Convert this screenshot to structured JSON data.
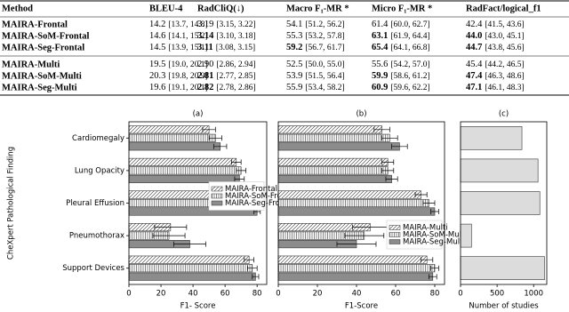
{
  "table": {
    "columns": [
      "Method",
      "BLEU-4",
      "RadCliQ(↓)",
      "Macro F₁-MR *",
      "Micro F₁-MR *",
      "RadFact/logical_f1"
    ],
    "rows": [
      {
        "method": "MAIRA-Frontal",
        "cells": [
          {
            "value": "14.2",
            "ci": "[13.7, 14.8]",
            "bold": false
          },
          {
            "value": "3.19",
            "ci": "[3.15, 3.22]",
            "bold": false
          },
          {
            "value": "54.1",
            "ci": "[51.2, 56.2]",
            "bold": false
          },
          {
            "value": "61.4",
            "ci": "[60.0, 62.7]",
            "bold": false
          },
          {
            "value": "42.4",
            "ci": "[41.5, 43.6]",
            "bold": false
          }
        ]
      },
      {
        "method": "MAIRA-SoM-Frontal",
        "cells": [
          {
            "value": "14.6",
            "ci": "[14.1, 15.2]",
            "bold": false
          },
          {
            "value": "3.14",
            "ci": "[3.10, 3.18]",
            "bold": true
          },
          {
            "value": "55.3",
            "ci": "[53.2, 57.8]",
            "bold": false
          },
          {
            "value": "63.1",
            "ci": "[61.9, 64.4]",
            "bold": true
          },
          {
            "value": "44.0",
            "ci": "[43.0, 45.1]",
            "bold": true
          }
        ]
      },
      {
        "method": "MAIRA-Seg-Frontal",
        "cells": [
          {
            "value": "14.5",
            "ci": "[13.9, 15.1]",
            "bold": false
          },
          {
            "value": "3.11",
            "ci": "[3.08, 3.15]",
            "bold": true
          },
          {
            "value": "59.2",
            "ci": "[56.7, 61.7]",
            "bold": true
          },
          {
            "value": "65.4",
            "ci": "[64.1, 66.8]",
            "bold": true
          },
          {
            "value": "44.7",
            "ci": "[43.8, 45.6]",
            "bold": true
          }
        ]
      },
      {
        "method": "MAIRA-Multi",
        "cells": [
          {
            "value": "19.5",
            "ci": "[19.0, 20.1]",
            "bold": false
          },
          {
            "value": "2.90",
            "ci": "[2.86, 2.94]",
            "bold": false
          },
          {
            "value": "52.5",
            "ci": "[50.0, 55.0]",
            "bold": false
          },
          {
            "value": "55.6",
            "ci": "[54.2, 57.0]",
            "bold": false
          },
          {
            "value": "45.4",
            "ci": "[44.2, 46.5]",
            "bold": false
          }
        ]
      },
      {
        "method": "MAIRA-SoM-Multi",
        "cells": [
          {
            "value": "20.3",
            "ci": "[19.8, 20.9]",
            "bold": false
          },
          {
            "value": "2.81",
            "ci": "[2.77, 2.85]",
            "bold": true
          },
          {
            "value": "53.9",
            "ci": "[51.5, 56.4]",
            "bold": false
          },
          {
            "value": "59.9",
            "ci": "[58.6, 61.2]",
            "bold": true
          },
          {
            "value": "47.4",
            "ci": "[46.3, 48.6]",
            "bold": true
          }
        ]
      },
      {
        "method": "MAIRA-Seg-Multi",
        "cells": [
          {
            "value": "19.6",
            "ci": "[19.1, 20.1]",
            "bold": false
          },
          {
            "value": "2.82",
            "ci": "[2.78, 2.86]",
            "bold": true
          },
          {
            "value": "55.9",
            "ci": "[53.4, 58.2]",
            "bold": false
          },
          {
            "value": "60.9",
            "ci": "[59.6, 62.2]",
            "bold": true
          },
          {
            "value": "47.1",
            "ci": "[46.1, 48.3]",
            "bold": true
          }
        ]
      }
    ]
  },
  "chart_data": [
    {
      "type": "bar",
      "orientation": "horizontal",
      "title": "(a)",
      "xlabel": "F1- Score",
      "ylabel": "CheXpert Pathological Finding",
      "categories": [
        "Cardiomegaly",
        "Lung Opacity",
        "Pleural Effusion",
        "Pneumothorax",
        "Support Devices"
      ],
      "series": [
        {
          "name": "MAIRA-Frontal",
          "color": "#ffffff",
          "hatch": "diagonal",
          "values": [
            50,
            67,
            78,
            26,
            75
          ],
          "errors": [
            4,
            3,
            3,
            10,
            3
          ]
        },
        {
          "name": "MAIRA-SoM-Frontal",
          "color": "#ffffff",
          "hatch": "vertical",
          "values": [
            54,
            70,
            80,
            25,
            77
          ],
          "errors": [
            4,
            3,
            3,
            10,
            3
          ]
        },
        {
          "name": "MAIRA-Seg-Frontal",
          "color": "#8c8c8c",
          "hatch": "none",
          "values": [
            57,
            69,
            80,
            38,
            79
          ],
          "errors": [
            4,
            3,
            2,
            10,
            2
          ]
        }
      ],
      "xlim": [
        0,
        86
      ],
      "xticks": [
        0,
        20,
        40,
        60,
        80
      ],
      "legend": "center right"
    },
    {
      "type": "bar",
      "orientation": "horizontal",
      "title": "(b)",
      "xlabel": "F1-Score",
      "series": [
        {
          "name": "MAIRA-Multi",
          "color": "#ffffff",
          "hatch": "diagonal",
          "values": [
            53,
            56,
            73,
            47,
            76
          ],
          "errors": [
            4,
            3,
            3,
            9,
            3
          ]
        },
        {
          "name": "MAIRA-SoM-Multi",
          "color": "#ffffff",
          "hatch": "vertical",
          "values": [
            57,
            56,
            77,
            44,
            80
          ],
          "errors": [
            4,
            3,
            3,
            10,
            2
          ]
        },
        {
          "name": "MAIRA-Seg-Multi",
          "color": "#8c8c8c",
          "hatch": "none",
          "values": [
            62,
            58,
            80,
            40,
            79
          ],
          "errors": [
            4,
            3,
            2,
            10,
            2
          ]
        }
      ],
      "xlim": [
        0,
        85
      ],
      "xticks": [
        0,
        20,
        40,
        60,
        80
      ],
      "legend": "lower right"
    },
    {
      "type": "bar",
      "orientation": "horizontal",
      "title": "(c)",
      "xlabel": "Number of studies",
      "values": [
        840,
        1060,
        1085,
        150,
        1150
      ],
      "color": "#dcdcdc",
      "xlim": [
        0,
        1180
      ],
      "xticks": [
        0,
        500,
        1000
      ]
    }
  ]
}
